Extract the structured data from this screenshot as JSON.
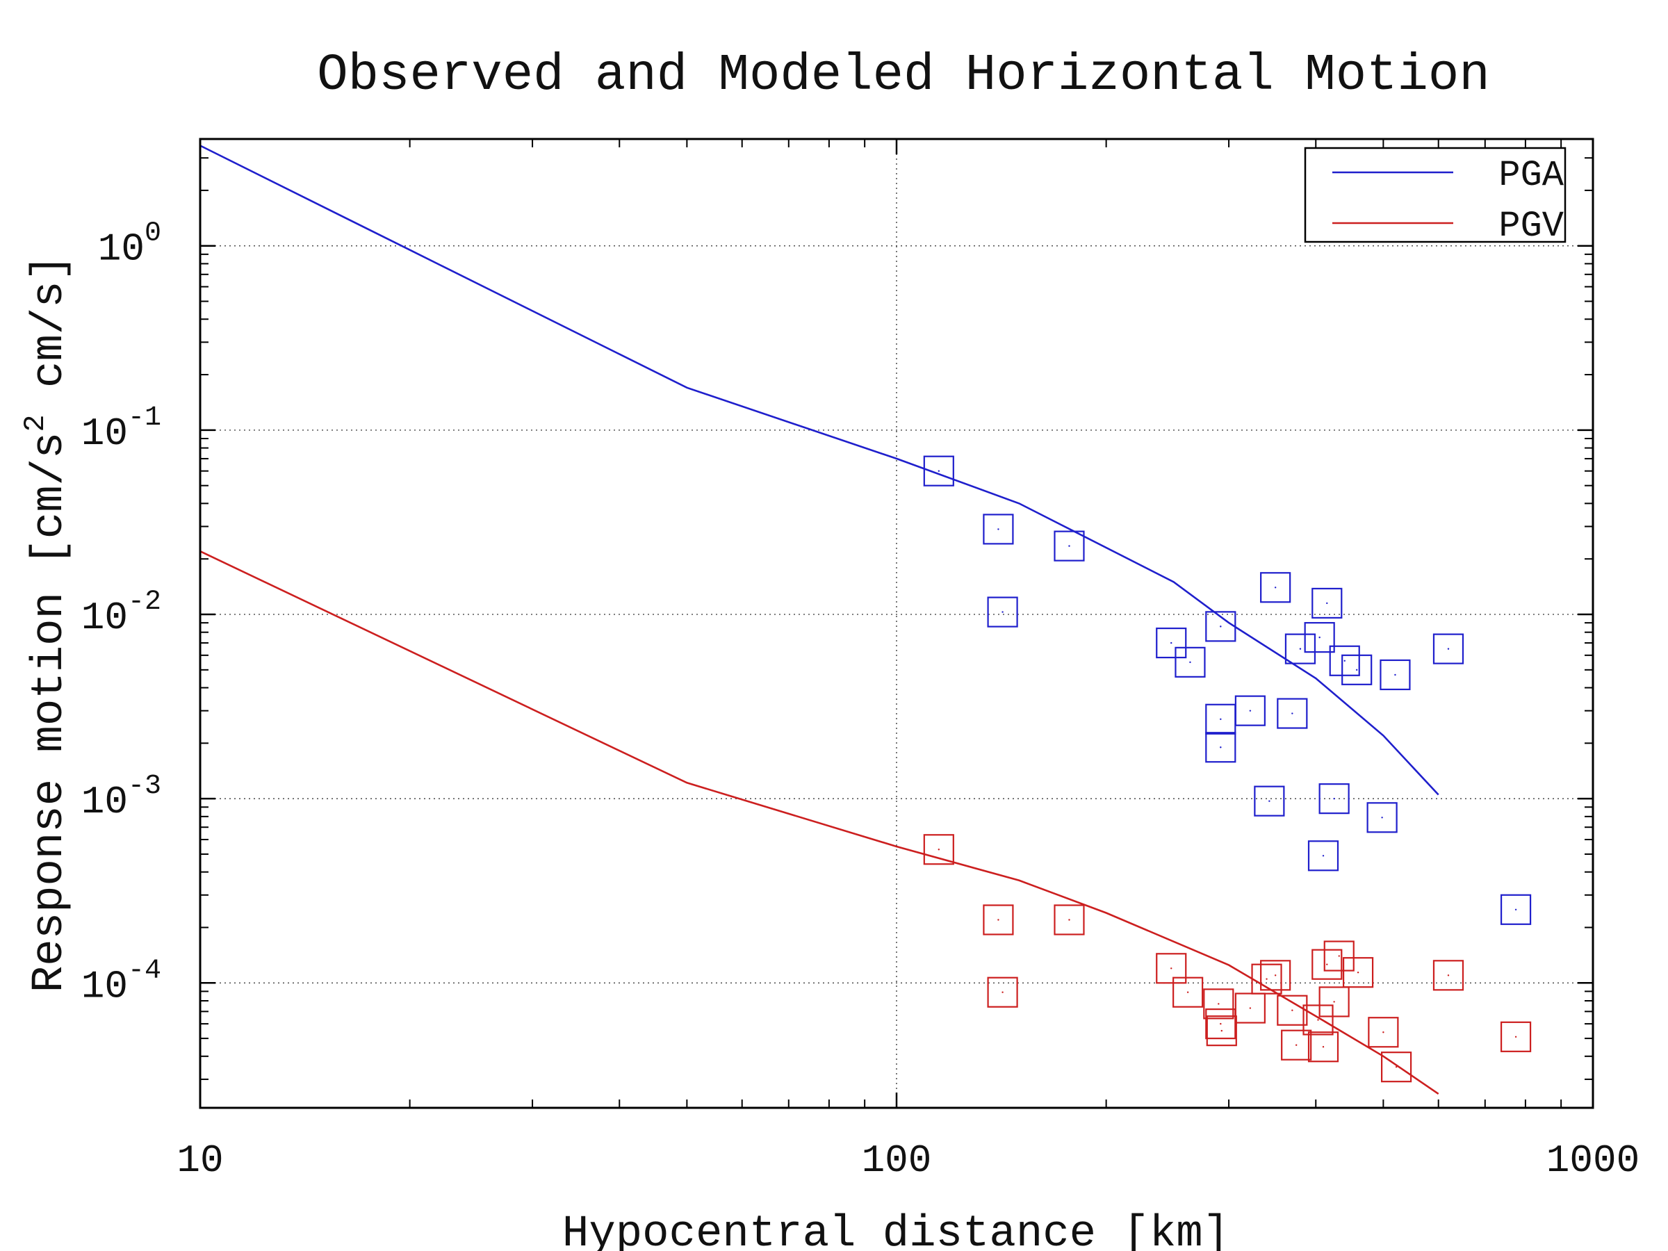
{
  "chart_data": {
    "type": "scatter",
    "title": "Observed and Modeled Horizontal Motion",
    "xlabel": "Hypocentral distance [km]",
    "ylabel": {
      "prefix": "Response motion  [cm/s",
      "superscript": "2",
      "suffix": "  cm/s]"
    },
    "x_scale": "log",
    "y_scale": "log",
    "xlim": [
      10,
      1000
    ],
    "ylim": [
      2.1e-05,
      3.8
    ],
    "grid": true,
    "legend_position": "top-right",
    "x_ticks": [
      {
        "value": 10,
        "label": "10"
      },
      {
        "value": 100,
        "label": "100"
      },
      {
        "value": 1000,
        "label": "1000"
      }
    ],
    "y_ticks": [
      {
        "value": 1,
        "base": "10",
        "exp": "0"
      },
      {
        "value": 0.1,
        "base": "10",
        "exp": "-1"
      },
      {
        "value": 0.01,
        "base": "10",
        "exp": "-2"
      },
      {
        "value": 0.001,
        "base": "10",
        "exp": "-3"
      },
      {
        "value": 0.0001,
        "base": "10",
        "exp": "-4"
      }
    ],
    "series": [
      {
        "name": "PGA",
        "kind": "line",
        "color": "#1f1fcc",
        "x": [
          10,
          20,
          50,
          100,
          150,
          250,
          300,
          400,
          500,
          600
        ],
        "y": [
          3.5,
          0.95,
          0.17,
          0.07,
          0.04,
          0.015,
          0.009,
          0.0045,
          0.0022,
          0.00105
        ]
      },
      {
        "name": "PGV",
        "kind": "line",
        "color": "#cc1f1f",
        "x": [
          10,
          50,
          100,
          150,
          200,
          300,
          400,
          500,
          600
        ],
        "y": [
          0.022,
          0.00122,
          0.00055,
          0.00036,
          0.00024,
          0.000125,
          6.6e-05,
          4e-05,
          2.5e-05
        ]
      },
      {
        "name": "PGA observed",
        "kind": "markers",
        "marker": "square",
        "color": "#1f1fcc",
        "x": [
          115,
          140,
          142,
          177,
          248,
          264,
          292,
          292,
          292,
          322,
          343,
          350,
          370,
          380,
          405,
          410,
          415,
          425,
          440,
          458,
          498,
          520,
          620,
          775
        ],
        "y": [
          0.06,
          0.029,
          0.0103,
          0.0235,
          0.007,
          0.0055,
          0.0086,
          0.0027,
          0.0019,
          0.003,
          0.00097,
          0.014,
          0.0029,
          0.0065,
          0.0075,
          0.00049,
          0.0115,
          0.001,
          0.0056,
          0.005,
          0.00079,
          0.0047,
          0.0065,
          0.00025
        ]
      },
      {
        "name": "PGV observed",
        "kind": "markers",
        "marker": "square",
        "color": "#cc1f1f",
        "x": [
          115,
          140,
          142,
          177,
          248,
          262,
          290,
          292,
          293,
          322,
          340,
          350,
          370,
          375,
          403,
          410,
          415,
          425,
          432,
          460,
          500,
          522,
          620,
          775
        ],
        "y": [
          0.00053,
          0.00022,
          8.9e-05,
          0.00022,
          0.00012,
          8.9e-05,
          7.7e-05,
          6e-05,
          5.5e-05,
          7.3e-05,
          0.000105,
          0.00011,
          7.1e-05,
          4.6e-05,
          6.3e-05,
          4.5e-05,
          0.000126,
          7.9e-05,
          0.00014,
          0.000114,
          5.4e-05,
          3.5e-05,
          0.00011,
          5.1e-05
        ]
      }
    ]
  }
}
